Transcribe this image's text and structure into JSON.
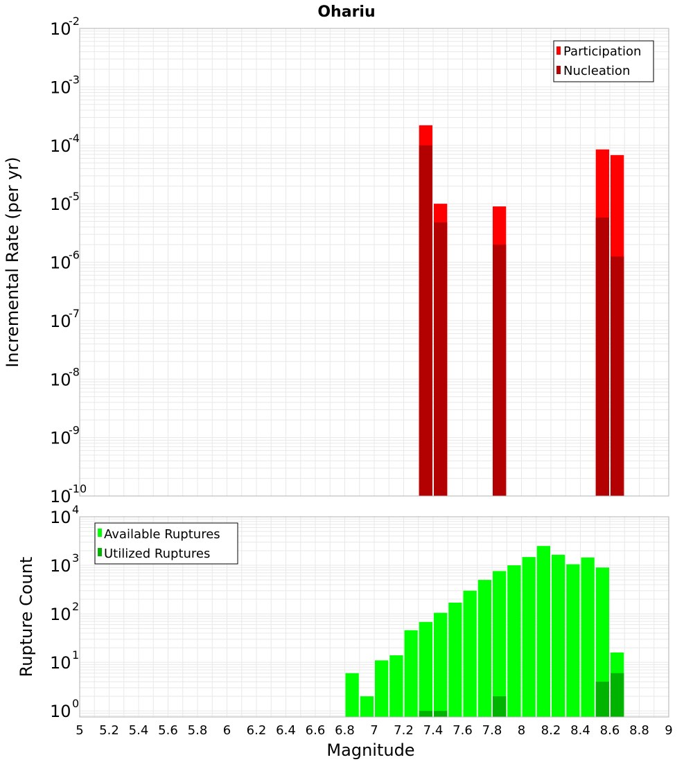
{
  "colors": {
    "participation": "#ff0000",
    "nucleation": "#b30000",
    "available": "#00ff00",
    "utilized": "#00b300",
    "grid": "#e8e8e8",
    "frame": "#b0b0b0"
  },
  "chart_data": [
    {
      "type": "bar",
      "title": "Ohariu",
      "xlabel": "",
      "ylabel": "Incremental Rate (per yr)",
      "yscale": "log",
      "ylim": [
        1e-10,
        0.01
      ],
      "xlim": [
        5,
        9
      ],
      "y_ticks": [
        {
          "base": "10",
          "exp": "-10",
          "value": 1e-10
        },
        {
          "base": "10",
          "exp": "-9",
          "value": 1e-09
        },
        {
          "base": "10",
          "exp": "-8",
          "value": 1e-08
        },
        {
          "base": "10",
          "exp": "-7",
          "value": 1e-07
        },
        {
          "base": "10",
          "exp": "-6",
          "value": 1e-06
        },
        {
          "base": "10",
          "exp": "-5",
          "value": 1e-05
        },
        {
          "base": "10",
          "exp": "-4",
          "value": 0.0001
        },
        {
          "base": "10",
          "exp": "-3",
          "value": 0.001
        },
        {
          "base": "10",
          "exp": "-2",
          "value": 0.01
        }
      ],
      "legend": {
        "position": "top-right",
        "entries": [
          "Participation",
          "Nucleation"
        ]
      },
      "grid": true,
      "series": [
        {
          "name": "Participation",
          "x": [
            7.35,
            7.45,
            7.85,
            8.55,
            8.65
          ],
          "values": [
            0.00022,
            1e-05,
            9e-06,
            8.5e-05,
            6.8e-05
          ]
        },
        {
          "name": "Nucleation",
          "x": [
            7.35,
            7.45,
            7.85,
            8.55,
            8.65
          ],
          "values": [
            0.0001,
            4.8e-06,
            2e-06,
            5.8e-06,
            1.25e-06
          ]
        }
      ]
    },
    {
      "type": "bar",
      "title": "",
      "xlabel": "Magnitude",
      "ylabel": "Rupture Count",
      "yscale": "log",
      "ylim": [
        0.75,
        10000
      ],
      "xlim": [
        5,
        9
      ],
      "y_ticks": [
        {
          "base": "10",
          "exp": "0",
          "value": 1
        },
        {
          "base": "10",
          "exp": "1",
          "value": 10
        },
        {
          "base": "10",
          "exp": "2",
          "value": 100
        },
        {
          "base": "10",
          "exp": "3",
          "value": 1000
        },
        {
          "base": "10",
          "exp": "4",
          "value": 10000
        }
      ],
      "x_ticks": [
        "5",
        "5.2",
        "5.4",
        "5.6",
        "5.8",
        "6",
        "6.2",
        "6.4",
        "6.6",
        "6.8",
        "7",
        "7.2",
        "7.4",
        "7.6",
        "7.8",
        "8",
        "8.2",
        "8.4",
        "8.6",
        "8.8",
        "9"
      ],
      "legend": {
        "position": "top-left",
        "entries": [
          "Available Ruptures",
          "Utilized Ruptures"
        ]
      },
      "grid": true,
      "series": [
        {
          "name": "Available Ruptures",
          "x": [
            6.85,
            6.95,
            7.05,
            7.15,
            7.25,
            7.35,
            7.45,
            7.55,
            7.65,
            7.75,
            7.85,
            7.95,
            8.05,
            8.15,
            8.25,
            8.35,
            8.45,
            8.55,
            8.65
          ],
          "values": [
            6,
            2,
            11,
            14,
            46,
            68,
            105,
            170,
            300,
            500,
            760,
            1000,
            1480,
            2500,
            1650,
            1050,
            1450,
            900,
            16
          ]
        },
        {
          "name": "Utilized Ruptures",
          "x": [
            7.35,
            7.45,
            7.85,
            8.55,
            8.65
          ],
          "values": [
            1,
            1,
            2,
            4,
            6
          ]
        }
      ]
    }
  ]
}
